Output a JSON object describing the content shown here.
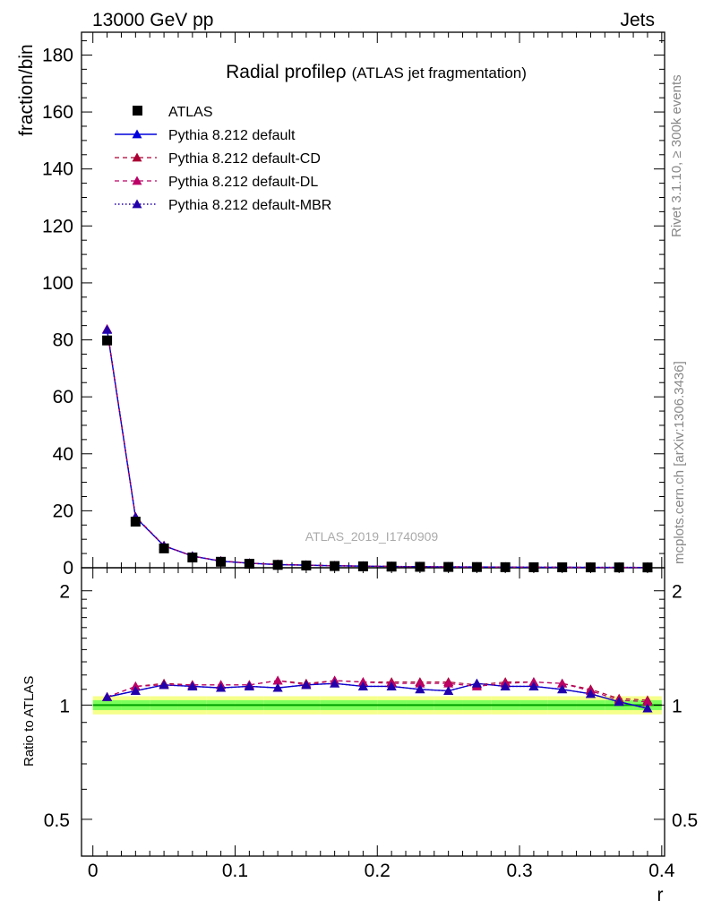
{
  "header": {
    "left": "13000 GeV pp",
    "right": "Jets"
  },
  "side_labels": {
    "rivet": "Rivet 3.1.10, ≥ 300k events",
    "source": "mcplots.cern.ch [arXiv:1306.3436]"
  },
  "watermark": "ATLAS_2019_I1740909",
  "colors": {
    "atlas": "#000000",
    "default": "#0000dd",
    "cd": "#aa0033",
    "dl": "#bb0066",
    "mbr": "#2200aa",
    "band_green": "#7cff5c",
    "band_yellow": "#f5ff8a",
    "ref_line": "#00a000"
  },
  "chart_data": {
    "type": "line",
    "title": "Radial profile",
    "title_symbol": "ρ",
    "title_sub": "(ATLAS jet fragmentation)",
    "x": [
      0.01,
      0.03,
      0.05,
      0.07,
      0.09,
      0.11,
      0.13,
      0.15,
      0.17,
      0.19,
      0.21,
      0.23,
      0.25,
      0.27,
      0.29,
      0.31,
      0.33,
      0.35,
      0.37,
      0.39
    ],
    "xlabel": "r",
    "xlim": [
      -0.008,
      0.402
    ],
    "xticks": [
      0,
      0.1,
      0.2,
      0.3,
      0.4
    ],
    "xtick_labels": [
      "0",
      "0.1",
      "0.2",
      "0.3",
      "0.4"
    ],
    "main": {
      "ylabel": "fraction/bin",
      "ylim": [
        0,
        188
      ],
      "yticks": [
        0,
        20,
        40,
        60,
        80,
        100,
        120,
        140,
        160,
        180
      ],
      "ytick_labels": [
        "0",
        "20",
        "40",
        "60",
        "80",
        "100",
        "120",
        "140",
        "160",
        "180"
      ],
      "atlas": [
        79.8,
        16.2,
        6.8,
        3.6,
        2.1,
        1.4,
        1.0,
        0.8,
        0.6,
        0.5,
        0.4,
        0.33,
        0.28,
        0.24,
        0.2,
        0.17,
        0.15,
        0.13,
        0.12,
        0.11
      ],
      "series": [
        {
          "name": "Pythia 8.212 default",
          "key": "default",
          "values": [
            83.5,
            17.7,
            7.7,
            4.1,
            2.3,
            1.6,
            1.1,
            0.9,
            0.7,
            0.56,
            0.46,
            0.37,
            0.31,
            0.28,
            0.22,
            0.19,
            0.16,
            0.14,
            0.12,
            0.107
          ]
        },
        {
          "name": "Pythia 8.212 default-CD",
          "key": "cd",
          "values": [
            83.8,
            17.9,
            7.8,
            4.1,
            2.4,
            1.6,
            1.2,
            0.9,
            0.7,
            0.57,
            0.47,
            0.38,
            0.32,
            0.28,
            0.23,
            0.2,
            0.17,
            0.14,
            0.124,
            0.113
          ]
        },
        {
          "name": "Pythia 8.212 default-DL",
          "key": "dl",
          "values": [
            83.8,
            17.9,
            7.8,
            4.1,
            2.4,
            1.6,
            1.2,
            0.9,
            0.7,
            0.57,
            0.47,
            0.38,
            0.32,
            0.28,
            0.23,
            0.2,
            0.17,
            0.14,
            0.124,
            0.113
          ]
        },
        {
          "name": "Pythia 8.212 default-MBR",
          "key": "mbr",
          "values": [
            83.6,
            17.8,
            7.7,
            4.1,
            2.3,
            1.6,
            1.1,
            0.9,
            0.7,
            0.56,
            0.46,
            0.37,
            0.31,
            0.28,
            0.22,
            0.19,
            0.16,
            0.14,
            0.122,
            0.108
          ]
        }
      ],
      "legend": [
        "ATLAS",
        "Pythia 8.212 default",
        "Pythia 8.212 default-CD",
        "Pythia 8.212 default-DL",
        "Pythia 8.212 default-MBR"
      ],
      "legend_position": "top-left"
    },
    "ratio": {
      "ylabel": "Ratio to ATLAS",
      "scale": "log",
      "ylim": [
        0.4,
        2.3
      ],
      "yticks": [
        0.5,
        1,
        2
      ],
      "ytick_labels": [
        "0.5",
        "1",
        "2"
      ],
      "band_green": [
        0.03,
        0.03,
        0.03,
        0.03,
        0.03,
        0.03,
        0.03,
        0.03,
        0.03,
        0.03,
        0.03,
        0.03,
        0.03,
        0.03,
        0.03,
        0.03,
        0.03,
        0.03,
        0.03,
        0.03
      ],
      "band_yellow": [
        0.055,
        0.055,
        0.055,
        0.055,
        0.055,
        0.055,
        0.055,
        0.055,
        0.055,
        0.055,
        0.055,
        0.055,
        0.055,
        0.055,
        0.055,
        0.055,
        0.055,
        0.055,
        0.055,
        0.055
      ],
      "series": [
        {
          "key": "default",
          "values": [
            1.05,
            1.09,
            1.13,
            1.12,
            1.11,
            1.12,
            1.11,
            1.13,
            1.14,
            1.12,
            1.12,
            1.1,
            1.09,
            1.14,
            1.12,
            1.12,
            1.1,
            1.07,
            1.02,
            0.98
          ]
        },
        {
          "key": "cd",
          "values": [
            1.05,
            1.12,
            1.14,
            1.13,
            1.13,
            1.13,
            1.16,
            1.14,
            1.16,
            1.15,
            1.15,
            1.15,
            1.15,
            1.13,
            1.15,
            1.15,
            1.14,
            1.1,
            1.04,
            1.03
          ]
        },
        {
          "key": "dl",
          "values": [
            1.05,
            1.12,
            1.13,
            1.13,
            1.13,
            1.13,
            1.16,
            1.13,
            1.16,
            1.15,
            1.14,
            1.14,
            1.14,
            1.12,
            1.14,
            1.15,
            1.14,
            1.09,
            1.03,
            1.02
          ]
        },
        {
          "key": "mbr",
          "values": [
            1.05,
            1.09,
            1.13,
            1.12,
            1.11,
            1.12,
            1.11,
            1.13,
            1.14,
            1.12,
            1.12,
            1.1,
            1.09,
            1.14,
            1.12,
            1.12,
            1.1,
            1.07,
            1.02,
            0.98
          ]
        }
      ]
    }
  }
}
